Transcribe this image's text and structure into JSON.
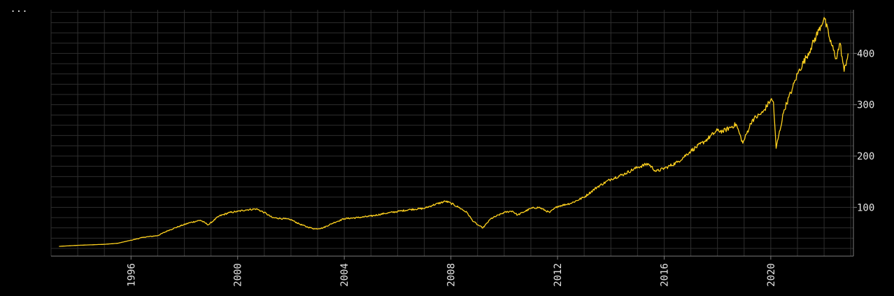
{
  "menu": {
    "label": "..."
  },
  "colors": {
    "background": "#000000",
    "line": "#ffd21f",
    "grid": "#2e2e2e",
    "axis": "#7a7a7a",
    "text": "#e6e6e6"
  },
  "chart_data": {
    "type": "line",
    "title": "",
    "xlabel": "",
    "ylabel": "",
    "grid": true,
    "y_axis_side": "right",
    "xlim": [
      1993.0,
      2023.1
    ],
    "ylim": [
      5,
      485
    ],
    "x_ticks": [
      1996,
      2000,
      2004,
      2008,
      2012,
      2016,
      2020
    ],
    "x_tick_labels": [
      "1996",
      "2000",
      "2004",
      "2008",
      "2012",
      "2016",
      "2020"
    ],
    "y_ticks": [
      100,
      200,
      300,
      400
    ],
    "y_tick_labels": [
      "100",
      "200",
      "300",
      "400"
    ],
    "series": [
      {
        "x": [
          1993.3,
          1994.0,
          1995.0,
          1995.5,
          1996.0,
          1996.5,
          1997.0,
          1997.4,
          1997.8,
          1998.2,
          1998.6,
          1998.9,
          1999.3,
          1999.7,
          2000.0,
          2000.3,
          2000.7,
          2001.0,
          2001.3,
          2001.7,
          2002.0,
          2002.3,
          2002.6,
          2002.9,
          2003.2,
          2003.6,
          2004.0,
          2004.5,
          2005.0,
          2005.5,
          2006.0,
          2006.5,
          2007.0,
          2007.3,
          2007.8,
          2008.0,
          2008.3,
          2008.6,
          2008.8,
          2009.0,
          2009.2,
          2009.5,
          2010.0,
          2010.3,
          2010.5,
          2011.0,
          2011.3,
          2011.7,
          2012.0,
          2012.5,
          2013.0,
          2013.5,
          2014.0,
          2014.5,
          2015.0,
          2015.4,
          2015.7,
          2016.1,
          2016.5,
          2017.0,
          2017.5,
          2018.0,
          2018.2,
          2018.7,
          2018.95,
          2019.3,
          2019.7,
          2020.0,
          2020.1,
          2020.2,
          2020.5,
          2020.8,
          2021.0,
          2021.5,
          2021.8,
          2022.0,
          2022.2,
          2022.45,
          2022.6,
          2022.75,
          2022.9
        ],
        "y": [
          24,
          26,
          28,
          30,
          36,
          42,
          45,
          55,
          63,
          70,
          75,
          66,
          83,
          90,
          92,
          95,
          97,
          90,
          80,
          78,
          76,
          68,
          62,
          58,
          60,
          70,
          78,
          80,
          83,
          88,
          92,
          96,
          98,
          104,
          112,
          108,
          100,
          90,
          75,
          66,
          60,
          78,
          90,
          93,
          85,
          98,
          100,
          90,
          102,
          108,
          120,
          140,
          155,
          165,
          178,
          185,
          170,
          178,
          188,
          210,
          228,
          250,
          248,
          262,
          225,
          270,
          285,
          310,
          305,
          215,
          290,
          330,
          360,
          410,
          445,
          470,
          430,
          390,
          420,
          365,
          400
        ]
      }
    ]
  }
}
